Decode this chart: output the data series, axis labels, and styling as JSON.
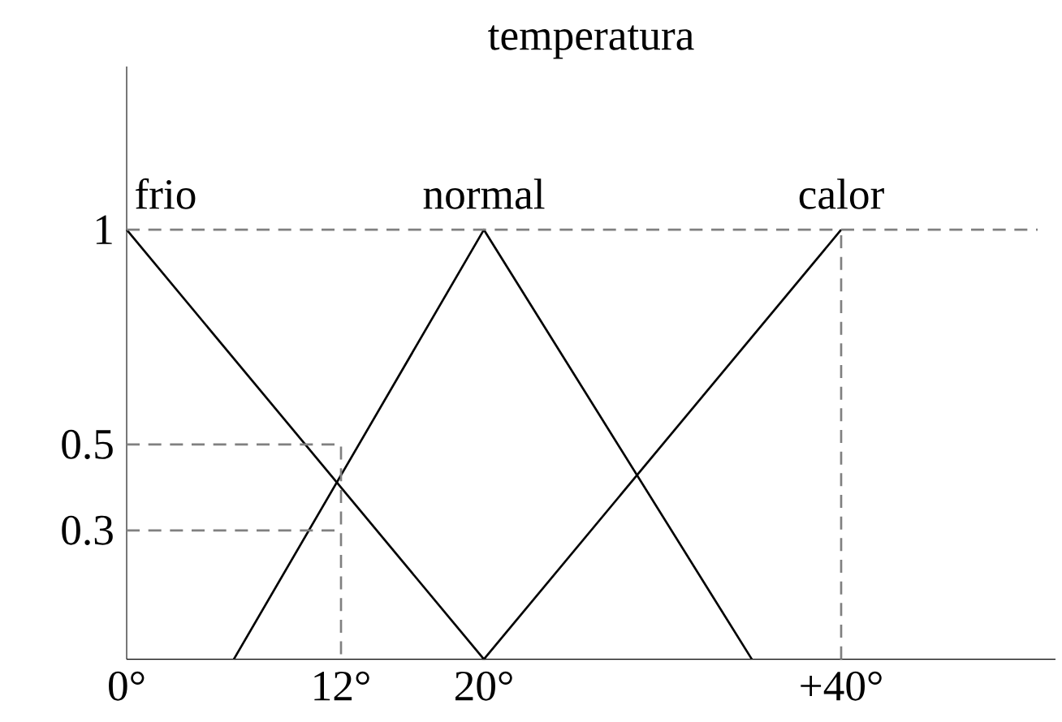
{
  "chart_data": {
    "type": "line",
    "title": "temperatura",
    "xlim": [
      0,
      52
    ],
    "ylim": [
      0,
      1.38
    ],
    "xticks": [
      {
        "value": 0,
        "label": "0°"
      },
      {
        "value": 12,
        "label": "12°"
      },
      {
        "value": 20,
        "label": "20°"
      },
      {
        "value": 40,
        "label": "+40°"
      }
    ],
    "yticks": [
      0.3,
      0.5,
      1
    ],
    "grid": false,
    "legend": false,
    "marker": "none",
    "series": [
      {
        "name": "frio",
        "color": "#000000",
        "x": [
          0,
          20
        ],
        "values": [
          1,
          0
        ]
      },
      {
        "name": "normal",
        "color": "#000000",
        "x": [
          6,
          20,
          35
        ],
        "values": [
          0,
          1,
          0
        ]
      },
      {
        "name": "calor",
        "color": "#000000",
        "x": [
          20,
          40
        ],
        "values": [
          0,
          1
        ]
      },
      {
        "color": "#808080",
        "line_style": "dashed",
        "x": [
          0,
          51
        ],
        "values": [
          1,
          1
        ]
      },
      {
        "color": "#808080",
        "line_style": "dashed",
        "x": [
          40,
          40
        ],
        "values": [
          0,
          1
        ]
      },
      {
        "color": "#808080",
        "line_style": "dashed",
        "x": [
          0,
          12,
          12
        ],
        "values": [
          0.5,
          0.5,
          0
        ]
      },
      {
        "color": "#808080",
        "line_style": "dashed",
        "x": [
          0,
          12
        ],
        "values": [
          0.3,
          0.3
        ]
      }
    ]
  }
}
